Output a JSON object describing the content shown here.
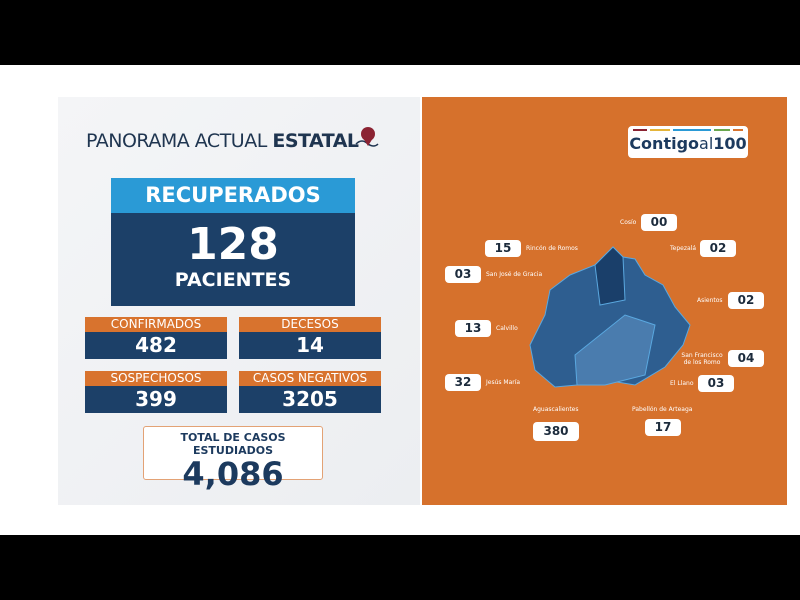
{
  "header": {
    "title_light": "PANORAMA ACTUAL ",
    "title_bold": "ESTATAL"
  },
  "recovered": {
    "label": "RECUPERADOS",
    "value": "128",
    "unit": "PACIENTES"
  },
  "stats": [
    {
      "label": "CONFIRMADOS",
      "value": "482"
    },
    {
      "label": "DECESOS",
      "value": "14"
    },
    {
      "label": "SOSPECHOSOS",
      "value": "399"
    },
    {
      "label": "CASOS NEGATIVOS",
      "value": "3205"
    }
  ],
  "total": {
    "label": "TOTAL DE CASOS ESTUDIADOS",
    "value": "4,086"
  },
  "logo": {
    "bold": "Contigo",
    "light": "al",
    "num": "100",
    "bar_colors": [
      "#8b2332",
      "#e5b53a",
      "#2a9ad6",
      "#6aa84f",
      "#d8732e"
    ]
  },
  "colors": {
    "orange": "#d6712c",
    "navy": "#1c4068",
    "blue": "#2a9ad6"
  },
  "municipalities": [
    {
      "name": "Cosío",
      "value": "00"
    },
    {
      "name": "Rincón de Romos",
      "value": "15"
    },
    {
      "name": "Tepezalá",
      "value": "02"
    },
    {
      "name": "San José de Gracia",
      "value": "03"
    },
    {
      "name": "Asientos",
      "value": "02"
    },
    {
      "name": "Calvillo",
      "value": "13"
    },
    {
      "name": "San Francisco de los Romo",
      "value": "04"
    },
    {
      "name": "Jesús María",
      "value": "32"
    },
    {
      "name": "El Llano",
      "value": "03"
    },
    {
      "name": "Aguascalientes",
      "value": "380"
    },
    {
      "name": "Pabellón de Arteaga",
      "value": "17"
    }
  ]
}
